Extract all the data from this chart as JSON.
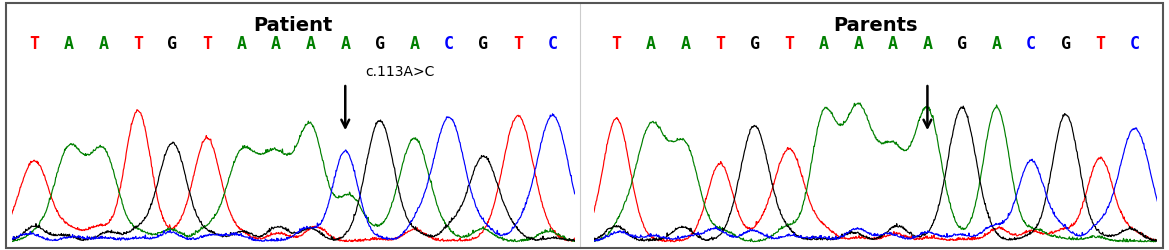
{
  "title_left": "Patient",
  "title_right": "Parents",
  "sequence": [
    "T",
    "A",
    "A",
    "T",
    "G",
    "T",
    "A",
    "A",
    "A",
    "A",
    "G",
    "A",
    "C",
    "G",
    "T",
    "C"
  ],
  "seq_colors": [
    "red",
    "green",
    "green",
    "red",
    "black",
    "red",
    "green",
    "green",
    "green",
    "green",
    "black",
    "green",
    "blue",
    "black",
    "red",
    "blue"
  ],
  "annotation_left": "c.113A>C",
  "mutation_index": 9,
  "background_color": "#ffffff",
  "border_color": "#555555",
  "title_fontsize": 14,
  "seq_fontsize": 12,
  "annot_fontsize": 10
}
